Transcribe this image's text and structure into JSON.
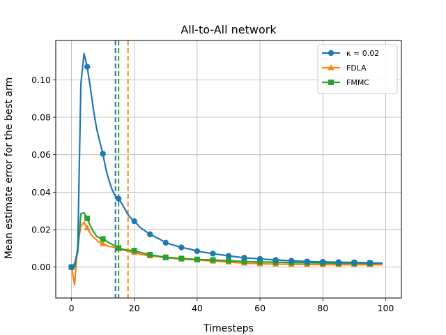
{
  "chart_data": {
    "type": "line",
    "title": "All-to-All network",
    "xlabel": "Timesteps",
    "ylabel": "Mean estimate error for the best arm",
    "xlim": [
      -5,
      105
    ],
    "ylim": [
      -0.0165,
      0.121
    ],
    "xticks": [
      0,
      20,
      40,
      60,
      80,
      100
    ],
    "yticks": [
      0.0,
      0.02,
      0.04,
      0.06,
      0.08,
      0.1
    ],
    "grid": true,
    "legend_position": "top-right",
    "series": [
      {
        "name": "κ = 0.02",
        "color": "#1f77b4",
        "marker": "circle",
        "x": [
          0,
          1,
          2,
          3,
          4,
          5,
          6,
          7,
          8,
          9,
          10,
          11,
          12,
          13,
          14,
          15,
          16,
          17,
          18,
          19,
          20,
          22,
          25,
          28,
          30,
          33,
          35,
          38,
          40,
          45,
          50,
          55,
          60,
          65,
          70,
          75,
          80,
          85,
          90,
          95,
          99
        ],
        "y": [
          0.0,
          0.0,
          0.01,
          0.098,
          0.114,
          0.107,
          0.096,
          0.084,
          0.074,
          0.067,
          0.0605,
          0.052,
          0.046,
          0.041,
          0.038,
          0.0365,
          0.034,
          0.031,
          0.028,
          0.026,
          0.0245,
          0.021,
          0.0175,
          0.015,
          0.013,
          0.0115,
          0.0105,
          0.0095,
          0.0085,
          0.0072,
          0.006,
          0.005,
          0.0044,
          0.0038,
          0.0034,
          0.003,
          0.0028,
          0.0026,
          0.0025,
          0.0023,
          0.0021
        ],
        "marker_x": [
          0,
          5,
          10,
          15,
          20,
          25,
          30,
          35,
          40,
          45,
          50,
          55,
          60,
          65,
          70,
          75,
          80,
          85,
          90,
          95
        ]
      },
      {
        "name": "FDLA",
        "color": "#ff7f0e",
        "marker": "triangle",
        "x": [
          0,
          1,
          2,
          3,
          4,
          5,
          6,
          7,
          8,
          9,
          10,
          12,
          14,
          15,
          16,
          18,
          20,
          22,
          25,
          28,
          30,
          35,
          40,
          45,
          50,
          55,
          60,
          65,
          70,
          75,
          80,
          85,
          90,
          95,
          99
        ],
        "y": [
          0.0,
          -0.0095,
          0.012,
          0.022,
          0.024,
          0.021,
          0.018,
          0.016,
          0.0145,
          0.013,
          0.0125,
          0.011,
          0.0105,
          0.0098,
          0.0093,
          0.0085,
          0.0078,
          0.0068,
          0.006,
          0.0055,
          0.005,
          0.0043,
          0.0038,
          0.0032,
          0.0027,
          0.0021,
          0.0018,
          0.0016,
          0.0015,
          0.0014,
          0.0013,
          0.0013,
          0.0013,
          0.0013,
          0.0013
        ],
        "marker_x": [
          0,
          5,
          10,
          15,
          20,
          25,
          30,
          35,
          40,
          45,
          50,
          55,
          60,
          65,
          70,
          75,
          80,
          85,
          90,
          95
        ]
      },
      {
        "name": "FMMC",
        "color": "#2ca02c",
        "marker": "square",
        "x": [
          0,
          1,
          2,
          3,
          4,
          5,
          6,
          7,
          8,
          9,
          10,
          12,
          14,
          15,
          16,
          18,
          20,
          22,
          25,
          28,
          30,
          35,
          40,
          45,
          50,
          55,
          60,
          65,
          70,
          75,
          80,
          85,
          90,
          95,
          99
        ],
        "y": [
          0.0,
          0.002,
          0.008,
          0.0285,
          0.029,
          0.026,
          0.022,
          0.019,
          0.0165,
          0.0155,
          0.015,
          0.013,
          0.0112,
          0.0102,
          0.0097,
          0.009,
          0.0088,
          0.0078,
          0.0066,
          0.0058,
          0.0052,
          0.0046,
          0.0041,
          0.0038,
          0.0034,
          0.003,
          0.0028,
          0.0026,
          0.0024,
          0.0023,
          0.0022,
          0.0021,
          0.0021,
          0.002,
          0.002
        ],
        "marker_x": [
          0,
          5,
          10,
          15,
          20,
          25,
          30,
          35,
          40,
          45,
          50,
          55,
          60,
          65,
          70,
          75,
          80,
          85,
          90,
          95
        ]
      }
    ],
    "vertical_lines": [
      {
        "x": 14,
        "color": "#1f77b4",
        "style": "dashed"
      },
      {
        "x": 15,
        "color": "#2ca02c",
        "style": "dashed"
      },
      {
        "x": 18,
        "color": "#ff7f0e",
        "style": "dashed"
      }
    ]
  }
}
